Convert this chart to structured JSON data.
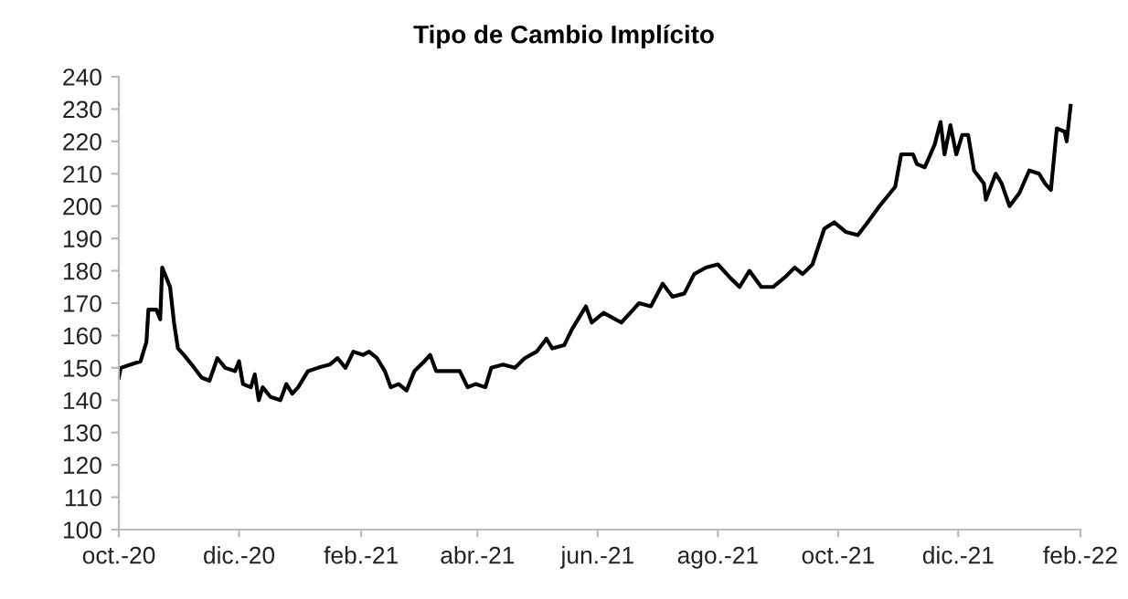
{
  "chart_data": {
    "type": "line",
    "title": "Tipo de Cambio Implícito",
    "x": [
      "2020-10-01",
      "2020-10-02",
      "2020-10-07",
      "2020-10-12",
      "2020-10-15",
      "2020-10-16",
      "2020-10-20",
      "2020-10-22",
      "2020-10-23",
      "2020-10-25",
      "2020-10-27",
      "2020-10-29",
      "2020-10-31",
      "2020-11-03",
      "2020-11-07",
      "2020-11-12",
      "2020-11-16",
      "2020-11-20",
      "2020-11-24",
      "2020-11-29",
      "2020-12-01",
      "2020-12-03",
      "2020-12-07",
      "2020-12-09",
      "2020-12-11",
      "2020-12-13",
      "2020-12-17",
      "2020-12-22",
      "2020-12-25",
      "2020-12-28",
      "2020-12-31",
      "2021-01-05",
      "2021-01-10",
      "2021-01-16",
      "2021-01-20",
      "2021-01-24",
      "2021-01-28",
      "2021-02-02",
      "2021-02-05",
      "2021-02-09",
      "2021-02-13",
      "2021-02-16",
      "2021-02-20",
      "2021-02-24",
      "2021-02-28",
      "2021-03-05",
      "2021-03-08",
      "2021-03-11",
      "2021-03-17",
      "2021-03-23",
      "2021-03-27",
      "2021-03-31",
      "2021-04-05",
      "2021-04-08",
      "2021-04-14",
      "2021-04-20",
      "2021-04-25",
      "2021-05-01",
      "2021-05-06",
      "2021-05-09",
      "2021-05-15",
      "2021-05-19",
      "2021-05-26",
      "2021-05-29",
      "2021-06-04",
      "2021-06-13",
      "2021-06-19",
      "2021-06-22",
      "2021-06-28",
      "2021-07-04",
      "2021-07-09",
      "2021-07-15",
      "2021-07-20",
      "2021-07-26",
      "2021-08-01",
      "2021-08-07",
      "2021-08-12",
      "2021-08-17",
      "2021-08-23",
      "2021-08-29",
      "2021-09-04",
      "2021-09-09",
      "2021-09-13",
      "2021-09-18",
      "2021-09-24",
      "2021-09-29",
      "2021-10-05",
      "2021-10-11",
      "2021-10-16",
      "2021-10-22",
      "2021-10-30",
      "2021-11-02",
      "2021-11-08",
      "2021-11-10",
      "2021-11-14",
      "2021-11-19",
      "2021-11-22",
      "2021-11-24",
      "2021-11-27",
      "2021-11-30",
      "2021-12-03",
      "2021-12-06",
      "2021-12-09",
      "2021-12-14",
      "2021-12-15",
      "2021-12-20",
      "2021-12-23",
      "2021-12-27",
      "2022-01-01",
      "2022-01-06",
      "2022-01-11",
      "2022-01-14",
      "2022-01-17",
      "2022-01-20",
      "2022-01-24",
      "2022-01-25",
      "2022-01-27"
    ],
    "series": [
      {
        "color": "#000000",
        "values": [
          147,
          150,
          151,
          152,
          158,
          168,
          168,
          165,
          181,
          178,
          175,
          164,
          156,
          154,
          151,
          147,
          146,
          153,
          150,
          149,
          152,
          145,
          144,
          148,
          140,
          144,
          141,
          140,
          145,
          142,
          144,
          149,
          150,
          151,
          153,
          150,
          155,
          154,
          155,
          153,
          149,
          144,
          145,
          143,
          149,
          152,
          154,
          149,
          149,
          149,
          144,
          145,
          144,
          150,
          151,
          150,
          153,
          155,
          159,
          156,
          157,
          162,
          169,
          164,
          167,
          164,
          168,
          170,
          169,
          176,
          172,
          173,
          179,
          181,
          182,
          178,
          175,
          180,
          175,
          175,
          178,
          181,
          179,
          182,
          193,
          195,
          192,
          191,
          195,
          200,
          206,
          216,
          216,
          213,
          212,
          219,
          226,
          216,
          225,
          216,
          222,
          222,
          211,
          207,
          202,
          210,
          207,
          200,
          204,
          211,
          210,
          207,
          205,
          224,
          223,
          220,
          231
        ]
      }
    ],
    "xlim": [
      "2020-10-01",
      "2022-02-01"
    ],
    "xticks": [
      {
        "value": "2020-10-01",
        "label": "oct.-20"
      },
      {
        "value": "2020-12-01",
        "label": "dic.-20"
      },
      {
        "value": "2021-02-01",
        "label": "feb.-21"
      },
      {
        "value": "2021-04-01",
        "label": "abr.-21"
      },
      {
        "value": "2021-06-01",
        "label": "jun.-21"
      },
      {
        "value": "2021-08-01",
        "label": "ago.-21"
      },
      {
        "value": "2021-10-01",
        "label": "oct.-21"
      },
      {
        "value": "2021-12-01",
        "label": "dic.-21"
      },
      {
        "value": "2022-02-01",
        "label": "feb.-22"
      }
    ],
    "ylim": [
      100,
      240
    ],
    "yticks": [
      100,
      110,
      120,
      130,
      140,
      150,
      160,
      170,
      180,
      190,
      200,
      210,
      220,
      230,
      240
    ],
    "grid": false,
    "marker": "none",
    "line_style": "solid"
  }
}
